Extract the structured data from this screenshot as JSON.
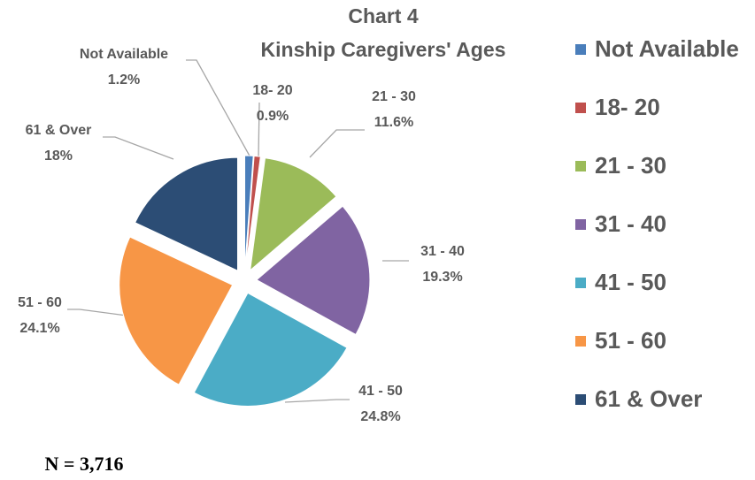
{
  "chart_data": {
    "type": "pie",
    "title": "Chart 4",
    "subtitle": "Kinship Caregivers' Ages",
    "categories": [
      "Not Available",
      "18- 20",
      "21 - 30",
      "31 - 40",
      "41 - 50",
      "51 - 60",
      "61 & Over"
    ],
    "values": [
      1.2,
      0.9,
      11.6,
      19.3,
      24.8,
      24.1,
      18
    ],
    "value_labels": [
      "1.2%",
      "0.9%",
      "11.6%",
      "19.3%",
      "24.8%",
      "24.1%",
      "18%"
    ],
    "colors": [
      "#4a7ebb",
      "#c0504d",
      "#9bbb59",
      "#8064a2",
      "#4bacc6",
      "#f79646",
      "#2c4d75"
    ],
    "legend": "right",
    "annotation": "N = 3,716"
  }
}
